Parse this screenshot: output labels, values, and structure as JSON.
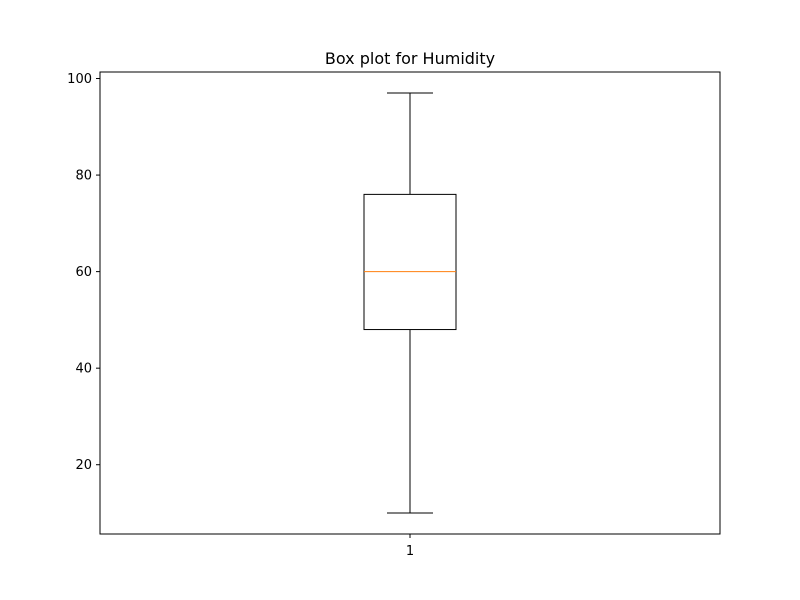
{
  "chart_data": {
    "type": "box",
    "title": "Box plot for Humidity",
    "xlabel": "",
    "ylabel": "",
    "categories": [
      "1"
    ],
    "boxes": [
      {
        "category": "1",
        "whisker_low": 10,
        "q1": 48,
        "median": 60,
        "q3": 76,
        "whisker_high": 97
      }
    ],
    "ylim": [
      5.65,
      101.35
    ],
    "yticks": [
      20,
      40,
      60,
      80,
      100
    ],
    "ytick_labels": [
      "20",
      "40",
      "60",
      "80",
      "100"
    ],
    "grid": false,
    "legend": "none",
    "colors": {
      "box": "#000000",
      "median": "#ff7f0e",
      "axes": "#000000"
    }
  }
}
